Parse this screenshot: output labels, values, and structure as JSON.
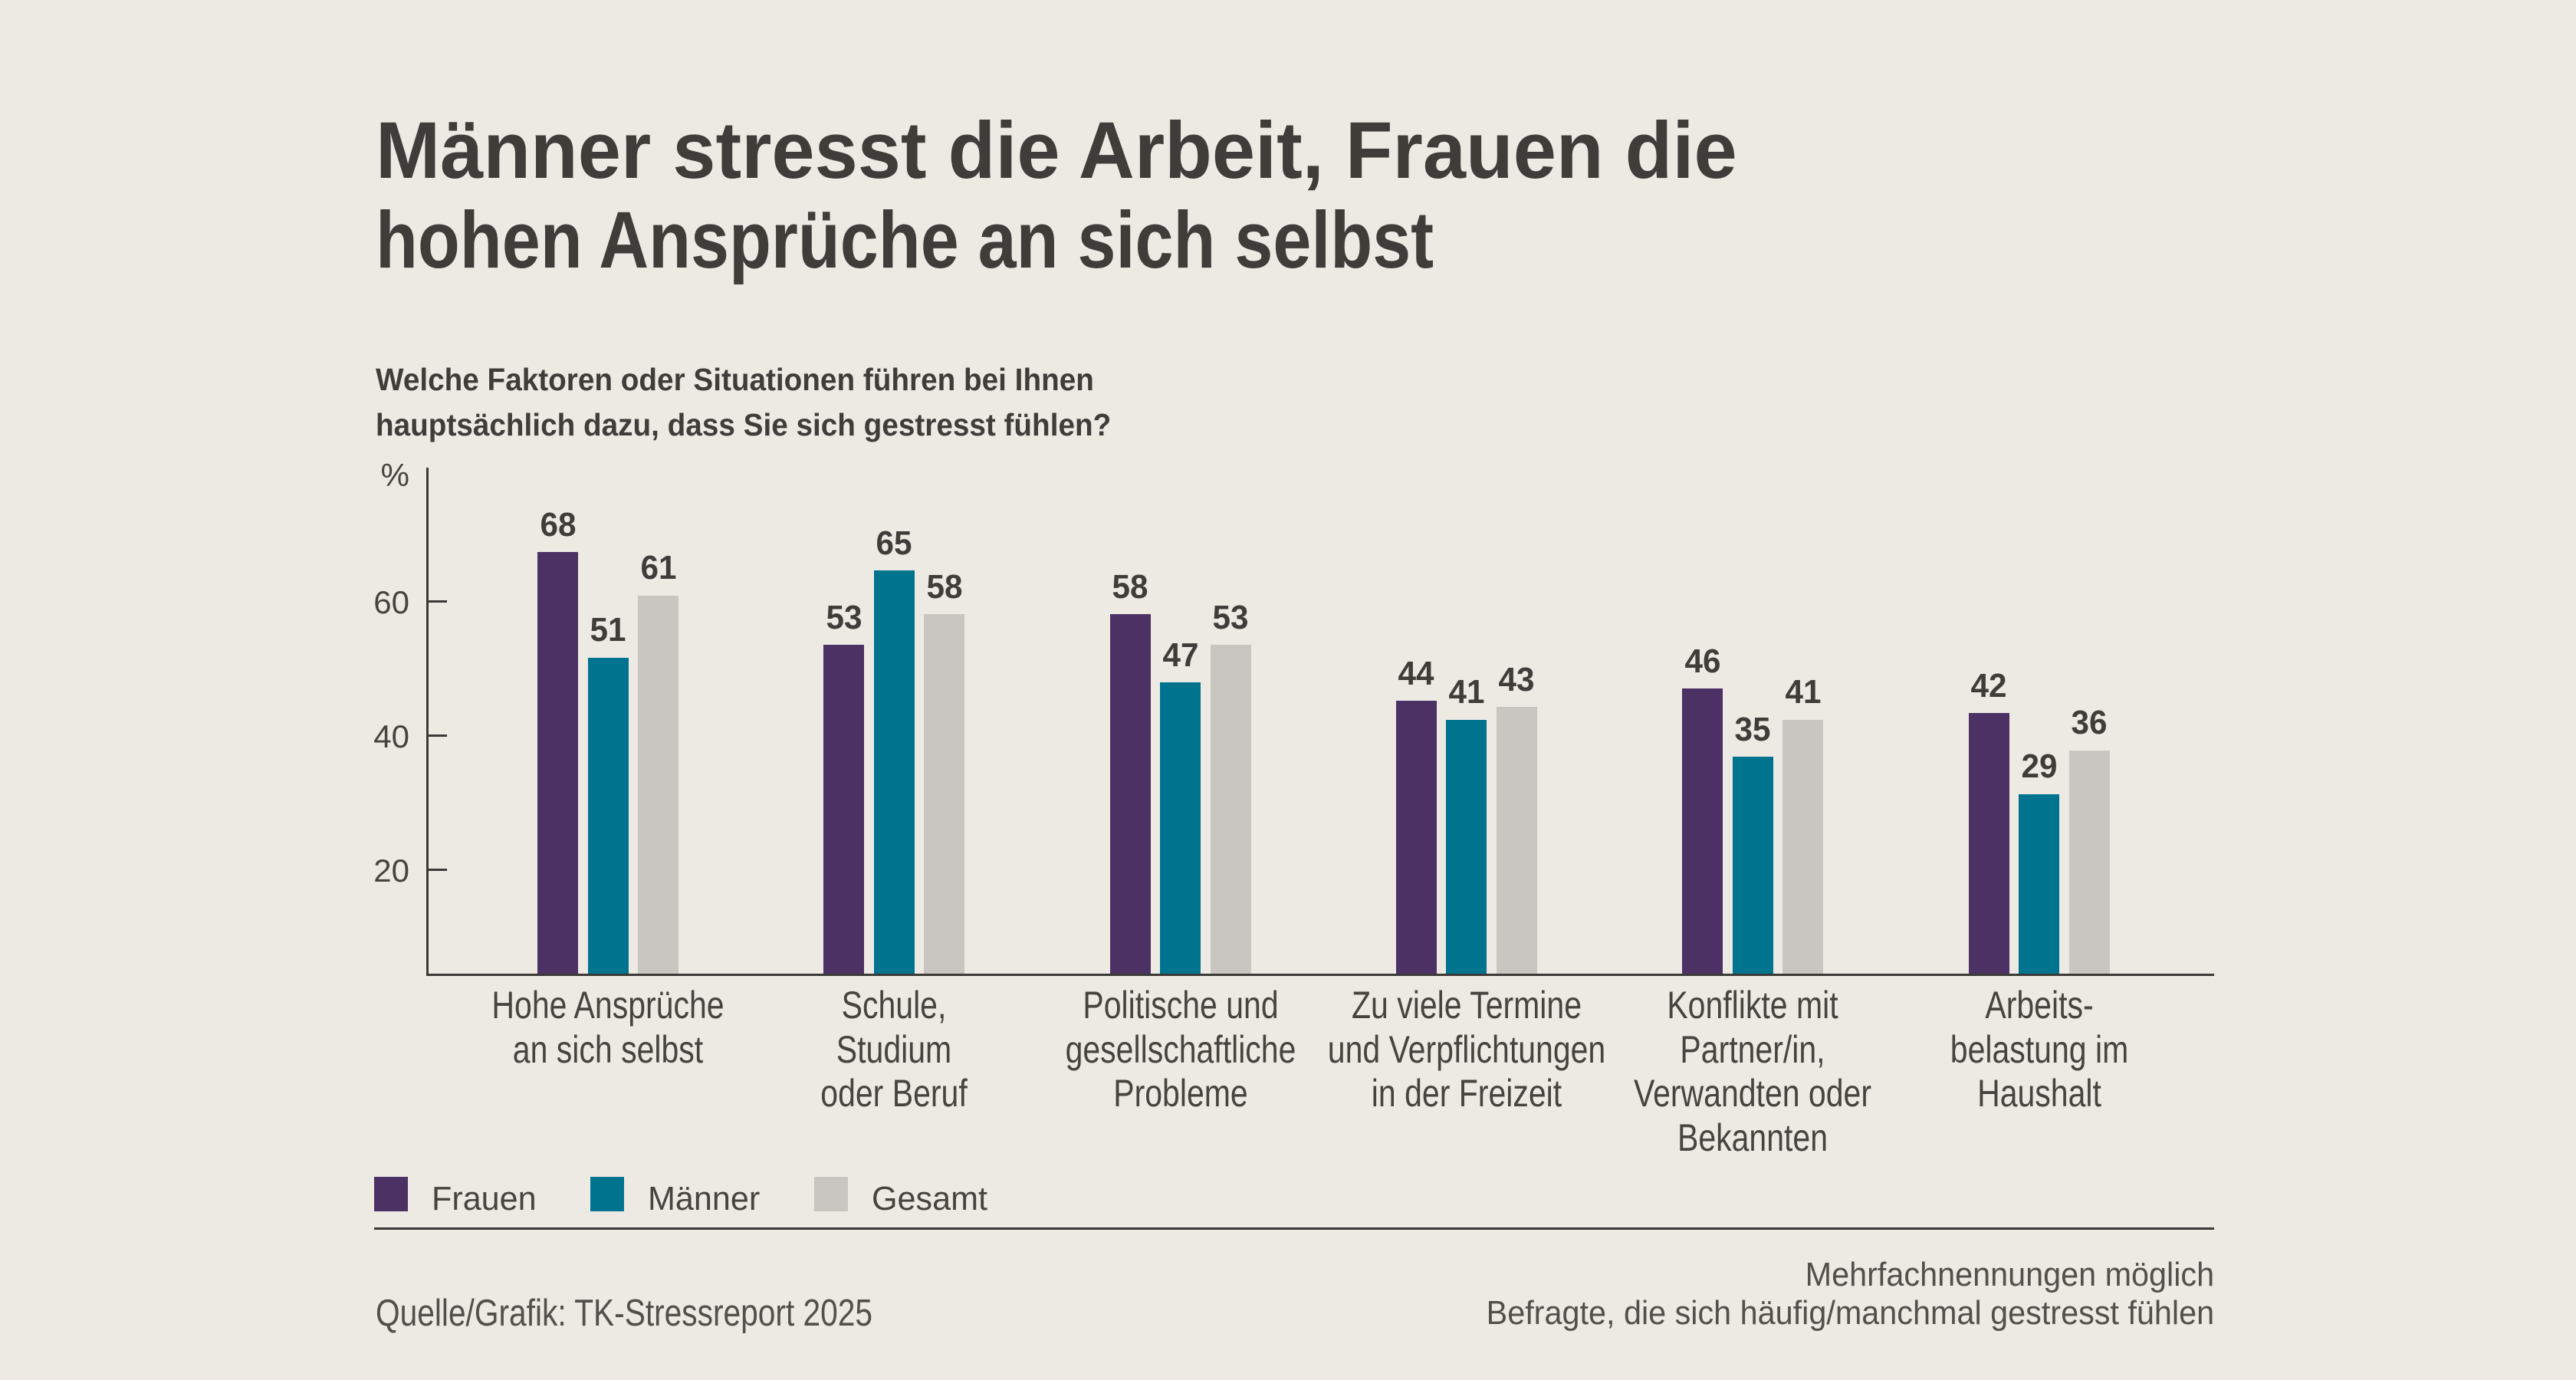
{
  "title": {
    "line1": "Männer stresst die Arbeit, Frauen die",
    "line2": "hohen Ansprüche an sich selbst"
  },
  "subtitle": {
    "line1": "Welche Faktoren oder Situationen führen bei Ihnen",
    "line2": "hauptsächlich dazu, dass Sie sich gestresst fühlen?"
  },
  "footer": {
    "source": "Quelle/Grafik: TK-Stressreport 2025",
    "note_line1": "Mehrfachnennungen möglich",
    "note_line2": "Befragte, die sich häufig/manchmal gestresst fühlen"
  },
  "colors": {
    "background": "#EDEAE4",
    "text_dark": "#3E3D39",
    "text_soft": "#45443F",
    "text_footer": "#51504B",
    "axis": "#3B3A37",
    "frauen": "#4C3164",
    "maenner": "#00738F",
    "gesamt": "#C9C5C0"
  },
  "chart_data": {
    "type": "bar",
    "title": "Männer stresst die Arbeit, Frauen die hohen Ansprüche an sich selbst",
    "subtitle": "Welche Faktoren oder Situationen führen bei Ihnen hauptsächlich dazu, dass Sie sich gestresst fühlen?",
    "ylabel": "%",
    "ylim": [
      0,
      75
    ],
    "yticks": [
      60,
      40,
      20
    ],
    "grid": false,
    "legend_position": "bottom-left",
    "notes": [
      "Mehrfachnennungen möglich",
      "Befragte, die sich häufig/manchmal gestresst fühlen"
    ],
    "source": "Quelle/Grafik: TK-Stressreport 2025",
    "categories": [
      "Hohe Ansprüche an sich selbst",
      "Schule, Studium oder Beruf",
      "Politische und gesellschaftliche Probleme",
      "Zu viele Termine und Verpflichtungen in der Freizeit",
      "Konflikte mit Partner/in, Verwandten oder Bekannten",
      "Arbeitsbelastung im Haushalt"
    ],
    "category_lines": [
      [
        "Hohe Ansprüche",
        "an sich selbst"
      ],
      [
        "Schule,",
        "Studium",
        "oder Beruf"
      ],
      [
        "Politische und",
        "gesellschaftliche",
        "Probleme"
      ],
      [
        "Zu viele Termine",
        "und Verpflichtungen",
        "in der Freizeit"
      ],
      [
        "Konflikte mit",
        "Partner/in,",
        "Verwandten oder",
        "Bekannten"
      ],
      [
        "Arbeits-",
        "belastung im",
        "Haushalt"
      ]
    ],
    "series": [
      {
        "name": "Frauen",
        "color": "#4C3164",
        "values": [
          68,
          53,
          58,
          44,
          46,
          42
        ]
      },
      {
        "name": "Männer",
        "color": "#00738F",
        "values": [
          51,
          65,
          47,
          41,
          35,
          29
        ]
      },
      {
        "name": "Gesamt",
        "color": "#C9C5C0",
        "values": [
          61,
          58,
          53,
          43,
          41,
          36
        ]
      }
    ]
  }
}
